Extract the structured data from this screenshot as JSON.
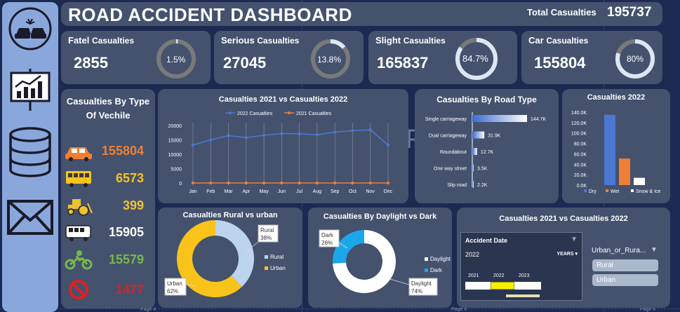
{
  "dashboard": {
    "title": "ROAD ACCIDENT DASHBOARD",
    "total_label": "Total Casualties",
    "total_value": "195737"
  },
  "kpis": [
    {
      "title_main": "Fatel",
      "title_sub": "Casualties",
      "value": "2855",
      "pct_label": "1.5%",
      "pct": 1.5
    },
    {
      "title_main": "Serious",
      "title_sub": "Casualties",
      "value": "27045",
      "pct_label": "13.8%",
      "pct": 13.8
    },
    {
      "title_main": "Slight",
      "title_sub": "Casualties",
      "value": "165837",
      "pct_label": "84.7%",
      "pct": 84.7
    },
    {
      "title_main": "Car",
      "title_sub": "Casualties",
      "value": "155804",
      "pct_label": "80%",
      "pct": 80
    }
  ],
  "vehicle": {
    "title_line1": "Casualties By Type",
    "title_line2": "Of  Vechile",
    "items": [
      {
        "icon": "car-icon",
        "value": "155804",
        "color": "#ef7f35"
      },
      {
        "icon": "bus-icon",
        "value": "6573",
        "color": "#f7c31a"
      },
      {
        "icon": "tractor-icon",
        "value": "399",
        "color": "#f0c232"
      },
      {
        "icon": "van-icon",
        "value": "15905",
        "color": "#ffffff"
      },
      {
        "icon": "motorcycle-icon",
        "value": "15579",
        "color": "#78b84b"
      },
      {
        "icon": "no-entry-icon",
        "value": "1477",
        "color": "#e02020"
      }
    ]
  },
  "sidebar": {
    "icons": [
      "car-crash-icon",
      "chart-board-icon",
      "database-icon",
      "mail-icon"
    ]
  },
  "page_labels": [
    "Page 4",
    "Page 5",
    "Page 6"
  ],
  "chart_data": [
    {
      "id": "line",
      "type": "line",
      "title": "Casualties  2021 vs Casualties  2022",
      "categories": [
        "Jan",
        "Feb",
        "Mar",
        "Apr",
        "May",
        "Jun",
        "Jul",
        "Aug",
        "Sep",
        "Oct",
        "Nov",
        "Dec"
      ],
      "series": [
        {
          "name": "2022 Casualties",
          "color": "#4a78d0",
          "values": [
            13200,
            15000,
            16500,
            15800,
            16600,
            17200,
            17100,
            16800,
            17700,
            18200,
            18500,
            13200
          ]
        },
        {
          "name": "2021 Casualties",
          "color": "#ef7f35",
          "values": [
            0,
            0,
            0,
            0,
            0,
            0,
            0,
            0,
            0,
            0,
            0,
            0
          ]
        }
      ],
      "yticks": [
        "0",
        "5000",
        "10000",
        "15000",
        "20000"
      ],
      "ylim": [
        0,
        20000
      ],
      "legend": "top"
    },
    {
      "id": "road",
      "type": "bar",
      "orientation": "horizontal",
      "title": "Casualties  By Road Type",
      "categories": [
        "Single carriageway",
        "Dual carriageway",
        "Roundabout",
        "One way street",
        "Slip road"
      ],
      "values": [
        144700,
        31900,
        12700,
        3500,
        2200
      ],
      "labels": [
        "144.7K",
        "31.9K",
        "12.7K",
        "3.5K",
        "2.2K"
      ]
    },
    {
      "id": "cond",
      "type": "bar",
      "title": "Casualties  2022",
      "categories": [
        "Dry",
        "Wet",
        "Snow & Ice"
      ],
      "colors": [
        "#4a78d0",
        "#ef7f35",
        "#ffffff"
      ],
      "values": [
        135000,
        51000,
        14000
      ],
      "yticks": [
        "0.0K",
        "20.0K",
        "40.0K",
        "60.0K",
        "80.0K",
        "100.0K",
        "120.0K",
        "140.0K"
      ],
      "ylim": [
        0,
        140000
      ],
      "legend": "bottom"
    },
    {
      "id": "rural",
      "type": "pie",
      "title": "Casualties Rural vs urban",
      "slices": [
        {
          "name": "Rural",
          "value": 38,
          "label": "38%",
          "color": "#bcd4ee"
        },
        {
          "name": "Urban",
          "value": 62,
          "label": "62%",
          "color": "#f9c31a"
        }
      ],
      "legend": "right"
    },
    {
      "id": "daylight",
      "type": "pie",
      "title": "Casualties  By Daylight vs Dark",
      "slices": [
        {
          "name": "Daylight",
          "value": 74,
          "label": "74%",
          "color": "#ffffff"
        },
        {
          "name": "Dark",
          "value": 26,
          "label": "26%",
          "color": "#1ca6ea"
        }
      ],
      "legend": "right"
    }
  ],
  "slicer": {
    "title": "Casualties  2021 vs Casualties  2022",
    "date_header": "Accident Date",
    "year_value": "2022",
    "granularity": "YEARS",
    "years": [
      "2021",
      "2022",
      "2023"
    ],
    "field_label": "Urban_or_Rura...",
    "options": [
      "Rural",
      "Urban"
    ]
  }
}
